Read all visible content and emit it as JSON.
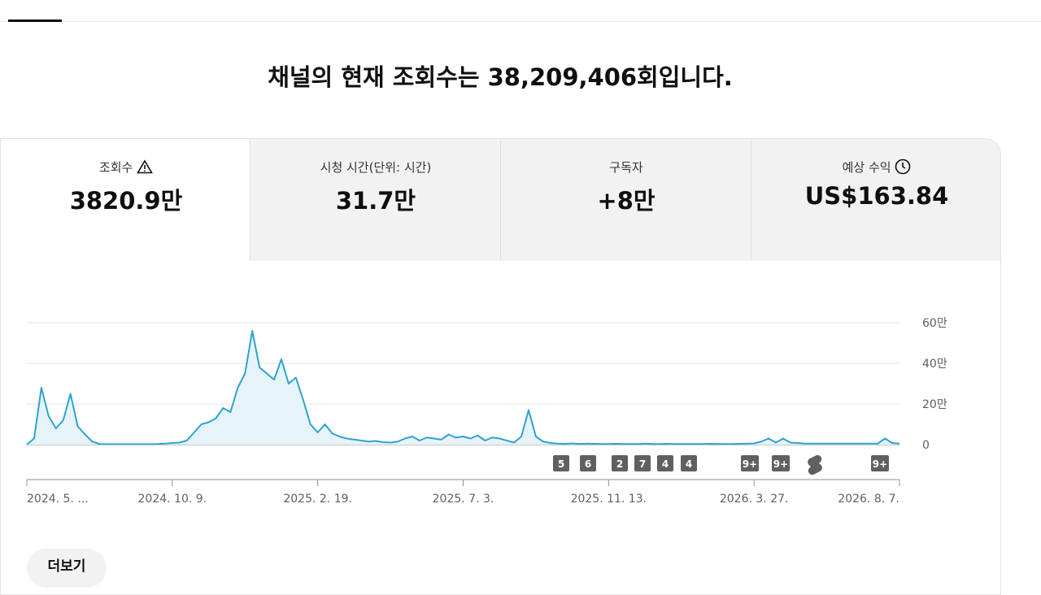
{
  "headline": "채널의 현재 조회수는 38,209,406회입니다.",
  "metrics": [
    {
      "label": "조회수",
      "value": "3820.9만"
    },
    {
      "label": "시청 시간(단위: 시간)",
      "value": "31.7만"
    },
    {
      "label": "구독자",
      "value": "+8만"
    },
    {
      "label": "예상 수익",
      "value": "US$163.84"
    }
  ],
  "chart_data": {
    "type": "area",
    "categories": [
      "2024. 5. ...",
      null,
      null,
      null,
      null,
      null,
      null,
      null,
      null,
      null,
      null,
      null,
      null,
      null,
      null,
      null,
      null,
      null,
      null,
      null,
      "2024. 10. 9.",
      null,
      null,
      null,
      null,
      null,
      null,
      null,
      null,
      null,
      null,
      null,
      null,
      null,
      null,
      null,
      null,
      null,
      null,
      null,
      "2025. 2. 19.",
      null,
      null,
      null,
      null,
      null,
      null,
      null,
      null,
      null,
      null,
      null,
      null,
      null,
      null,
      null,
      null,
      null,
      null,
      null,
      "2025. 7. 3.",
      null,
      null,
      null,
      null,
      null,
      null,
      null,
      null,
      null,
      null,
      null,
      null,
      null,
      null,
      null,
      null,
      null,
      null,
      null,
      "2025. 11. 13.",
      null,
      null,
      null,
      null,
      null,
      null,
      null,
      null,
      null,
      null,
      null,
      null,
      null,
      null,
      null,
      null,
      null,
      null,
      null,
      "2026. 3. 27.",
      null,
      null,
      null,
      null,
      null,
      null,
      null,
      null,
      null,
      null,
      null,
      null,
      null,
      null,
      null,
      null,
      null,
      null,
      null,
      "2026. 8. 7."
    ],
    "series": [
      {
        "name": "조회수",
        "color": "#2ea3cf",
        "values": [
          0,
          30000,
          280000,
          140000,
          80000,
          120000,
          250000,
          90000,
          50000,
          15000,
          3000,
          2000,
          2000,
          2000,
          2000,
          2000,
          2000,
          2000,
          3000,
          5000,
          8000,
          10000,
          20000,
          60000,
          100000,
          110000,
          130000,
          180000,
          160000,
          280000,
          350000,
          560000,
          380000,
          350000,
          320000,
          420000,
          300000,
          330000,
          220000,
          100000,
          60000,
          100000,
          55000,
          40000,
          30000,
          25000,
          20000,
          15000,
          18000,
          12000,
          10000,
          15000,
          30000,
          40000,
          20000,
          35000,
          30000,
          25000,
          50000,
          35000,
          40000,
          30000,
          45000,
          20000,
          35000,
          30000,
          20000,
          10000,
          40000,
          170000,
          40000,
          15000,
          8000,
          5000,
          4000,
          6000,
          3000,
          5000,
          4000,
          3000,
          3000,
          4000,
          3000,
          3000,
          3000,
          5000,
          3000,
          3000,
          4000,
          3000,
          3000,
          3000,
          3000,
          3000,
          4000,
          3000,
          3000,
          3000,
          4000,
          5000,
          6000,
          15000,
          30000,
          10000,
          30000,
          10000,
          8000,
          5000,
          5000,
          5000,
          5000,
          5000,
          5000,
          5000,
          5000,
          5000,
          5000,
          5000,
          30000,
          8000,
          5000
        ]
      }
    ],
    "ylim": [
      0,
      600000
    ],
    "yticks": [
      {
        "value": 0,
        "label": "0"
      },
      {
        "value": 200000,
        "label": "20만"
      },
      {
        "value": 400000,
        "label": "40만"
      },
      {
        "value": 600000,
        "label": "60만"
      }
    ],
    "grid": true,
    "annotations": [
      "5",
      "6",
      "2",
      "7",
      "4",
      "4",
      "9+",
      "9+",
      "9+"
    ]
  },
  "more_button": "더보기"
}
